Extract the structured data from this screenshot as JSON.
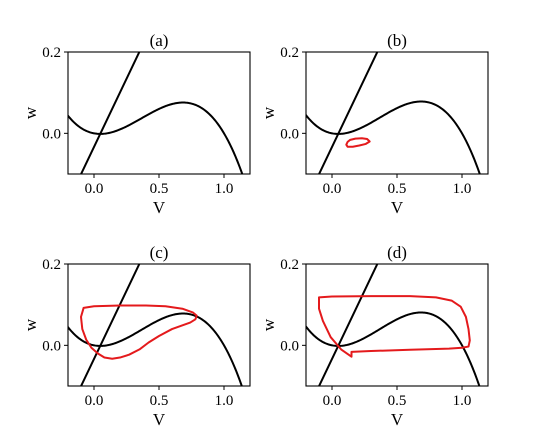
{
  "chart_data": [
    {
      "type": "line",
      "title": "(a)",
      "xlabel": "V",
      "ylabel": "w",
      "xlim": [
        -0.2,
        1.2
      ],
      "ylim": [
        -0.1,
        0.2
      ],
      "x_ticks": [
        "0.0",
        "0.5",
        "1.0"
      ],
      "y_ticks": [
        "0.0",
        "0.2"
      ],
      "series": [
        {
          "kind": "cubic",
          "color": "#000000",
          "params": {
            "a": 0.1,
            "b": 0.6
          }
        },
        {
          "kind": "line",
          "color": "#000000",
          "params": {
            "x0": 0.05,
            "slope": 0.67
          }
        }
      ]
    },
    {
      "type": "line",
      "title": "(b)",
      "xlabel": "V",
      "ylabel": "w",
      "xlim": [
        -0.2,
        1.2
      ],
      "ylim": [
        -0.1,
        0.2
      ],
      "x_ticks": [
        "0.0",
        "0.5",
        "1.0"
      ],
      "y_ticks": [
        "0.0",
        "0.2"
      ],
      "series": [
        {
          "kind": "cubic",
          "color": "#000000",
          "params": {
            "a": 0.1,
            "b": 0.62
          }
        },
        {
          "kind": "line",
          "color": "#000000",
          "params": {
            "x0": 0.05,
            "slope": 0.67
          }
        },
        {
          "kind": "cycle",
          "color": "#e41a1c",
          "points": [
            [
              0.12,
              -0.021
            ],
            [
              0.14,
              -0.016
            ],
            [
              0.18,
              -0.013
            ],
            [
              0.23,
              -0.012
            ],
            [
              0.27,
              -0.014
            ],
            [
              0.29,
              -0.02
            ],
            [
              0.26,
              -0.026
            ],
            [
              0.21,
              -0.03
            ],
            [
              0.16,
              -0.033
            ],
            [
              0.12,
              -0.033
            ],
            [
              0.11,
              -0.028
            ],
            [
              0.12,
              -0.021
            ]
          ]
        }
      ]
    },
    {
      "type": "line",
      "title": "(c)",
      "xlabel": "V",
      "ylabel": "w",
      "xlim": [
        -0.2,
        1.2
      ],
      "ylim": [
        -0.1,
        0.2
      ],
      "x_ticks": [
        "0.0",
        "0.5",
        "1.0"
      ],
      "y_ticks": [
        "0.0",
        "0.2"
      ],
      "series": [
        {
          "kind": "cubic",
          "color": "#000000",
          "params": {
            "a": 0.1,
            "b": 0.62
          }
        },
        {
          "kind": "line",
          "color": "#000000",
          "params": {
            "x0": 0.05,
            "slope": 0.67
          }
        },
        {
          "kind": "cycle",
          "color": "#e41a1c",
          "points": [
            [
              -0.08,
              0.092
            ],
            [
              0.0,
              0.096
            ],
            [
              0.2,
              0.098
            ],
            [
              0.4,
              0.098
            ],
            [
              0.55,
              0.096
            ],
            [
              0.68,
              0.09
            ],
            [
              0.76,
              0.081
            ],
            [
              0.79,
              0.073
            ],
            [
              0.78,
              0.064
            ],
            [
              0.74,
              0.056
            ],
            [
              0.67,
              0.048
            ],
            [
              0.6,
              0.04
            ],
            [
              0.5,
              0.023
            ],
            [
              0.42,
              0.007
            ],
            [
              0.35,
              -0.01
            ],
            [
              0.27,
              -0.023
            ],
            [
              0.2,
              -0.03
            ],
            [
              0.14,
              -0.033
            ],
            [
              0.08,
              -0.03
            ],
            [
              0.03,
              -0.02
            ],
            [
              -0.02,
              -0.006
            ],
            [
              -0.06,
              0.014
            ],
            [
              -0.09,
              0.04
            ],
            [
              -0.1,
              0.07
            ],
            [
              -0.08,
              0.092
            ]
          ]
        }
      ]
    },
    {
      "type": "line",
      "title": "(d)",
      "xlabel": "V",
      "ylabel": "w",
      "xlim": [
        -0.2,
        1.2
      ],
      "ylim": [
        -0.1,
        0.2
      ],
      "x_ticks": [
        "0.0",
        "0.5",
        "1.0"
      ],
      "y_ticks": [
        "0.0",
        "0.2"
      ],
      "series": [
        {
          "kind": "cubic",
          "color": "#000000",
          "params": {
            "a": 0.1,
            "b": 0.64
          }
        },
        {
          "kind": "line",
          "color": "#000000",
          "params": {
            "x0": 0.05,
            "slope": 0.67
          }
        },
        {
          "kind": "cycle",
          "color": "#e41a1c",
          "points": [
            [
              -0.1,
              0.118
            ],
            [
              0.0,
              0.12
            ],
            [
              0.3,
              0.121
            ],
            [
              0.6,
              0.121
            ],
            [
              0.8,
              0.118
            ],
            [
              0.92,
              0.11
            ],
            [
              0.99,
              0.095
            ],
            [
              1.03,
              0.07
            ],
            [
              1.05,
              0.04
            ],
            [
              1.06,
              0.012
            ],
            [
              1.05,
              -0.003
            ],
            [
              1.0,
              -0.006
            ],
            [
              0.9,
              -0.008
            ],
            [
              0.6,
              -0.011
            ],
            [
              0.3,
              -0.014
            ],
            [
              0.15,
              -0.016
            ],
            [
              0.15,
              -0.028
            ],
            [
              0.07,
              -0.01
            ],
            [
              -0.01,
              0.02
            ],
            [
              -0.07,
              0.06
            ],
            [
              -0.1,
              0.09
            ],
            [
              -0.1,
              0.118
            ]
          ]
        }
      ]
    }
  ]
}
